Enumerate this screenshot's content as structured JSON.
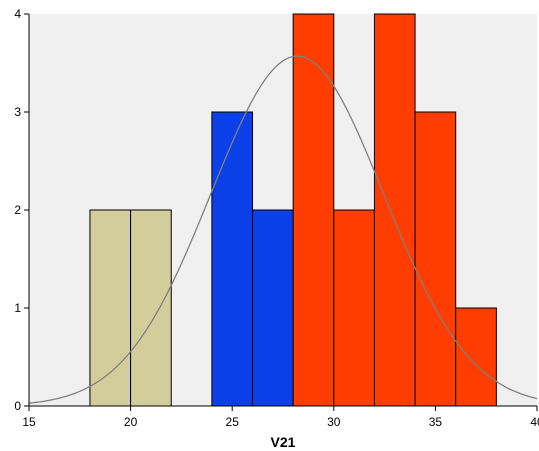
{
  "chart_data": {
    "type": "bar",
    "subtype": "histogram",
    "xlabel": "V21",
    "ylabel": "",
    "xlim": [
      15,
      40
    ],
    "ylim": [
      0,
      4
    ],
    "x_ticks": [
      15,
      20,
      25,
      30,
      35,
      40
    ],
    "y_ticks": [
      0,
      1,
      2,
      3,
      4
    ],
    "grid": false,
    "bin_width": 2,
    "bins": [
      {
        "start": 18,
        "end": 20,
        "count": 2,
        "color": "#d3cd9b"
      },
      {
        "start": 20,
        "end": 22,
        "count": 2,
        "color": "#d3cd9b"
      },
      {
        "start": 24,
        "end": 26,
        "count": 3,
        "color": "#0b3fe8"
      },
      {
        "start": 26,
        "end": 28,
        "count": 2,
        "color": "#0b3fe8"
      },
      {
        "start": 28,
        "end": 30,
        "count": 4,
        "color": "#ff3d00"
      },
      {
        "start": 30,
        "end": 32,
        "count": 2,
        "color": "#ff3d00"
      },
      {
        "start": 32,
        "end": 34,
        "count": 4,
        "color": "#ff3d00"
      },
      {
        "start": 34,
        "end": 36,
        "count": 3,
        "color": "#ff3d00"
      },
      {
        "start": 36,
        "end": 38,
        "count": 1,
        "color": "#ff3d00"
      }
    ],
    "normal_curve": {
      "mean": 28.2,
      "sd": 4.25,
      "peak": 3.57,
      "color": "#808080"
    },
    "colors": {
      "plot_background": "#f0f0f0",
      "bar_outline": "#000000",
      "axis": "#000000"
    }
  }
}
